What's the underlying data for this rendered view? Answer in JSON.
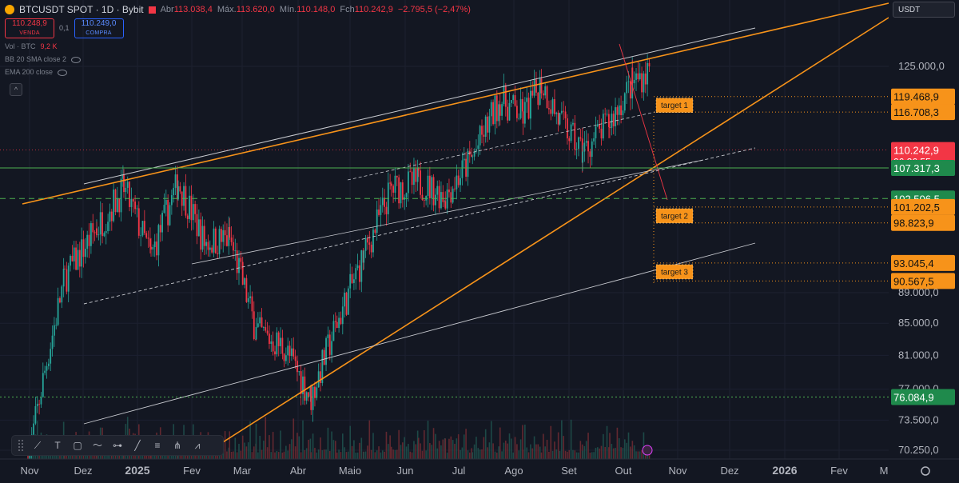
{
  "header": {
    "symbol_title": "BTCUSDT SPOT · 1D · Bybit",
    "ohlc": [
      {
        "key": "Abr",
        "value": "113.038,4"
      },
      {
        "key": "Máx.",
        "value": "113.620,0"
      },
      {
        "key": "Mín.",
        "value": "110.148,0"
      },
      {
        "key": "Fch",
        "value": "110.242,9"
      }
    ],
    "change": "−2.795,5 (−2,47%)",
    "sell": {
      "price": "110.248,9",
      "label": "VENDA"
    },
    "spread": "0,1",
    "buy": {
      "price": "110.249,0",
      "label": "COMPRA"
    },
    "volume_label": "Vol · BTC",
    "volume_value": "9,2 K",
    "indicators": [
      "BB 20 SMA close 2",
      "EMA 200 close"
    ],
    "collapse_glyph": "^"
  },
  "currency_selector": "USDT",
  "colors": {
    "background": "#131722",
    "up": "#26a69a",
    "down": "#f23645",
    "orange": "#f7931a",
    "green_level": "#4caf50",
    "trend_white": "#c8cad0"
  },
  "toolbar": {
    "tools": [
      "brush-icon",
      "text-icon",
      "rectangle-icon",
      "path-icon",
      "horizontal-ray-icon",
      "trend-line-icon",
      "fib-icon",
      "pitchfork-icon",
      "pattern-icon"
    ]
  },
  "chart_data": {
    "type": "candlestick",
    "x_ticks": [
      "Nov",
      "Dez",
      "2025",
      "Fev",
      "Mar",
      "Abr",
      "Maio",
      "Jun",
      "Jul",
      "Ago",
      "Set",
      "Out",
      "Nov",
      "Dez",
      "2026",
      "Fev",
      "M"
    ],
    "y_ticks": [
      "125.000,0",
      "89.000,0",
      "85.000,0",
      "81.000,0",
      "77.000,0",
      "73.500,0",
      "70.250,0"
    ],
    "y_ticks_numeric": [
      125000,
      89000,
      85000,
      81000,
      77000,
      73500,
      70250
    ],
    "price_labels": [
      {
        "value": 119468.9,
        "text": "119.468,9",
        "kind": "target"
      },
      {
        "value": 116708.3,
        "text": "116.708,3",
        "kind": "target"
      },
      {
        "value": 110242.9,
        "text": "110.242,9",
        "kind": "last",
        "countdown": "06:26:55"
      },
      {
        "value": 107317.3,
        "text": "107.317,3",
        "kind": "level"
      },
      {
        "value": 102506.5,
        "text": "102.506,5",
        "kind": "level"
      },
      {
        "value": 101202.5,
        "text": "101.202,5",
        "kind": "target"
      },
      {
        "value": 98823.9,
        "text": "98.823,9",
        "kind": "target"
      },
      {
        "value": 93045.4,
        "text": "93.045,4",
        "kind": "target"
      },
      {
        "value": 90567.5,
        "text": "90.567,5",
        "kind": "target"
      },
      {
        "value": 76084.9,
        "text": "76.084,9",
        "kind": "level"
      }
    ],
    "annotations": [
      "target 1",
      "target 2",
      "target 3"
    ],
    "trend": [
      {
        "m": "Nov",
        "p": 69000
      },
      {
        "m": "Nov",
        "p": 91000
      },
      {
        "m": "Dez",
        "p": 98000
      },
      {
        "m": "Dez",
        "p": 104000
      },
      {
        "m": "2025",
        "p": 94000
      },
      {
        "m": "2025",
        "p": 105000
      },
      {
        "m": "Fev",
        "p": 96000
      },
      {
        "m": "Fev",
        "p": 96500
      },
      {
        "m": "Mar",
        "p": 84000
      },
      {
        "m": "Mar",
        "p": 82000
      },
      {
        "m": "Abr",
        "p": 76000
      },
      {
        "m": "Abr",
        "p": 85000
      },
      {
        "m": "Maio",
        "p": 94000
      },
      {
        "m": "Maio",
        "p": 104000
      },
      {
        "m": "Jun",
        "p": 105000
      },
      {
        "m": "Jun",
        "p": 103000
      },
      {
        "m": "Jul",
        "p": 109000
      },
      {
        "m": "Jul",
        "p": 119000
      },
      {
        "m": "Ago",
        "p": 116000
      },
      {
        "m": "Ago",
        "p": 122000
      },
      {
        "m": "Ago",
        "p": 115000
      },
      {
        "m": "Set",
        "p": 110000
      },
      {
        "m": "Set",
        "p": 115000
      },
      {
        "m": "Out",
        "p": 122000
      },
      {
        "m": "Out",
        "p": 124500
      },
      {
        "m": "Out",
        "p": 110242.9
      }
    ]
  }
}
